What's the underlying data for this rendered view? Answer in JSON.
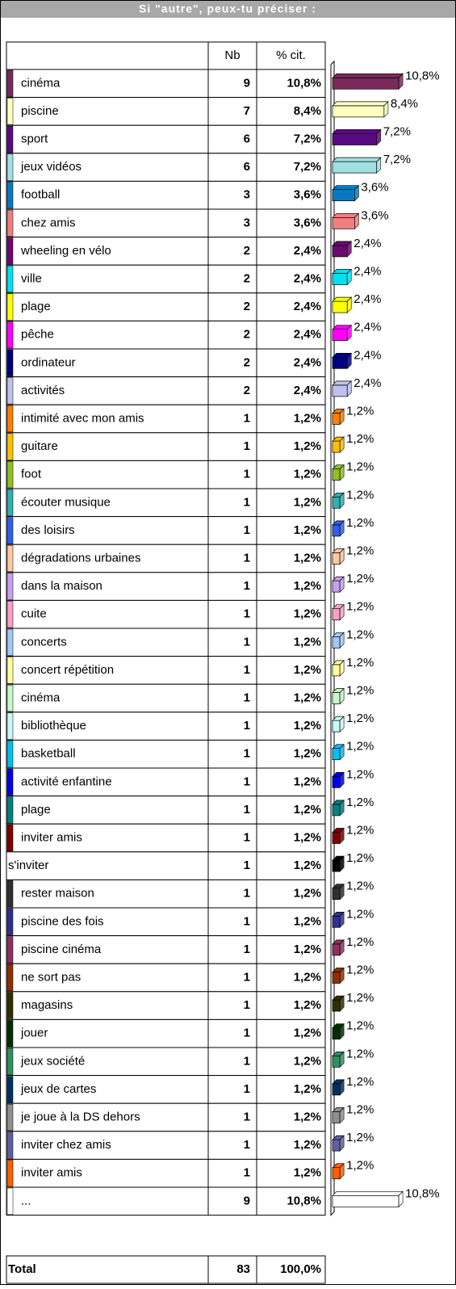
{
  "title": "Si \"autre\", peux-tu préciser :",
  "columns": [
    "Nb",
    "% cit."
  ],
  "rows": [
    {
      "label": "cinéma",
      "color": "#7a2a5a",
      "nb": 9,
      "pct": 10.8,
      "pct_label": "10,8%"
    },
    {
      "label": "piscine",
      "color": "#ffffc0",
      "nb": 7,
      "pct": 8.4,
      "pct_label": "8,4%"
    },
    {
      "label": "sport",
      "color": "#5a0a80",
      "nb": 6,
      "pct": 7.2,
      "pct_label": "7,2%"
    },
    {
      "label": "jeux vidéos",
      "color": "#a0e0e0",
      "nb": 6,
      "pct": 7.2,
      "pct_label": "7,2%"
    },
    {
      "label": "football",
      "color": "#0a78c0",
      "nb": 3,
      "pct": 3.6,
      "pct_label": "3,6%"
    },
    {
      "label": "chez amis",
      "color": "#f08080",
      "nb": 3,
      "pct": 3.6,
      "pct_label": "3,6%"
    },
    {
      "label": "wheeling en vélo",
      "color": "#6a0a70",
      "nb": 2,
      "pct": 2.4,
      "pct_label": "2,4%"
    },
    {
      "label": "ville",
      "color": "#00e0f0",
      "nb": 2,
      "pct": 2.4,
      "pct_label": "2,4%"
    },
    {
      "label": "plage",
      "color": "#ffff00",
      "nb": 2,
      "pct": 2.4,
      "pct_label": "2,4%"
    },
    {
      "label": "pêche",
      "color": "#ff00ff",
      "nb": 2,
      "pct": 2.4,
      "pct_label": "2,4%"
    },
    {
      "label": "ordinateur",
      "color": "#000080",
      "nb": 2,
      "pct": 2.4,
      "pct_label": "2,4%"
    },
    {
      "label": "activités",
      "color": "#c0c0f0",
      "nb": 2,
      "pct": 2.4,
      "pct_label": "2,4%"
    },
    {
      "label": "intimité avec mon amis",
      "color": "#ff8000",
      "nb": 1,
      "pct": 1.2,
      "pct_label": "1,2%"
    },
    {
      "label": "guitare",
      "color": "#ffc000",
      "nb": 1,
      "pct": 1.2,
      "pct_label": "1,2%"
    },
    {
      "label": "foot",
      "color": "#90c020",
      "nb": 1,
      "pct": 1.2,
      "pct_label": "1,2%"
    },
    {
      "label": "écouter musique",
      "color": "#30b0b0",
      "nb": 1,
      "pct": 1.2,
      "pct_label": "1,2%"
    },
    {
      "label": "des loisirs",
      "color": "#3060f0",
      "nb": 1,
      "pct": 1.2,
      "pct_label": "1,2%"
    },
    {
      "label": "dégradations urbaines",
      "color": "#ffc8a0",
      "nb": 1,
      "pct": 1.2,
      "pct_label": "1,2%"
    },
    {
      "label": "dans la maison",
      "color": "#c8a0f0",
      "nb": 1,
      "pct": 1.2,
      "pct_label": "1,2%"
    },
    {
      "label": "cuite",
      "color": "#f8a0c8",
      "nb": 1,
      "pct": 1.2,
      "pct_label": "1,2%"
    },
    {
      "label": "concerts",
      "color": "#a0c8f8",
      "nb": 1,
      "pct": 1.2,
      "pct_label": "1,2%"
    },
    {
      "label": "concert répétition",
      "color": "#ffffa0",
      "nb": 1,
      "pct": 1.2,
      "pct_label": "1,2%"
    },
    {
      "label": "cinéma",
      "color": "#c8f8c8",
      "nb": 1,
      "pct": 1.2,
      "pct_label": "1,2%"
    },
    {
      "label": "bibliothèque",
      "color": "#c8f8f8",
      "nb": 1,
      "pct": 1.2,
      "pct_label": "1,2%"
    },
    {
      "label": "basketball",
      "color": "#00c0f0",
      "nb": 1,
      "pct": 1.2,
      "pct_label": "1,2%"
    },
    {
      "label": "activité enfantine",
      "color": "#0000f0",
      "nb": 1,
      "pct": 1.2,
      "pct_label": "1,2%"
    },
    {
      "label": " plage",
      "color": "#008080",
      "nb": 1,
      "pct": 1.2,
      "pct_label": "1,2%"
    },
    {
      "label": " inviter amis",
      "color": "#800000",
      "nb": 1,
      "pct": 1.2,
      "pct_label": "1,2%"
    },
    {
      "label": "s'inviter",
      "color": "#000000",
      "swatch": false,
      "nb": 1,
      "pct": 1.2,
      "pct_label": "1,2%"
    },
    {
      "label": "rester maison",
      "color": "#303030",
      "nb": 1,
      "pct": 1.2,
      "pct_label": "1,2%"
    },
    {
      "label": "piscine des fois",
      "color": "#303090",
      "nb": 1,
      "pct": 1.2,
      "pct_label": "1,2%"
    },
    {
      "label": "piscine cinéma",
      "color": "#903060",
      "nb": 1,
      "pct": 1.2,
      "pct_label": "1,2%"
    },
    {
      "label": "ne sort pas",
      "color": "#903000",
      "nb": 1,
      "pct": 1.2,
      "pct_label": "1,2%"
    },
    {
      "label": "magasins",
      "color": "#303000",
      "nb": 1,
      "pct": 1.2,
      "pct_label": "1,2%"
    },
    {
      "label": "jouer",
      "color": "#003000",
      "nb": 1,
      "pct": 1.2,
      "pct_label": "1,2%"
    },
    {
      "label": "jeux société",
      "color": "#309060",
      "nb": 1,
      "pct": 1.2,
      "pct_label": "1,2%"
    },
    {
      "label": "jeux de cartes",
      "color": "#003060",
      "nb": 1,
      "pct": 1.2,
      "pct_label": "1,2%"
    },
    {
      "label": "je joue à la DS dehors",
      "color": "#909090",
      "nb": 1,
      "pct": 1.2,
      "pct_label": "1,2%"
    },
    {
      "label": "inviter chez amis",
      "color": "#6060a0",
      "nb": 1,
      "pct": 1.2,
      "pct_label": "1,2%"
    },
    {
      "label": "inviter amis",
      "color": "#ff6000",
      "nb": 1,
      "pct": 1.2,
      "pct_label": "1,2%"
    },
    {
      "label": "...",
      "color": "#ffffff",
      "nb": 9,
      "pct": 10.8,
      "pct_label": "10,8%"
    }
  ],
  "total": {
    "label": "Total",
    "nb": 83,
    "pct_label": "100,0%"
  }
}
